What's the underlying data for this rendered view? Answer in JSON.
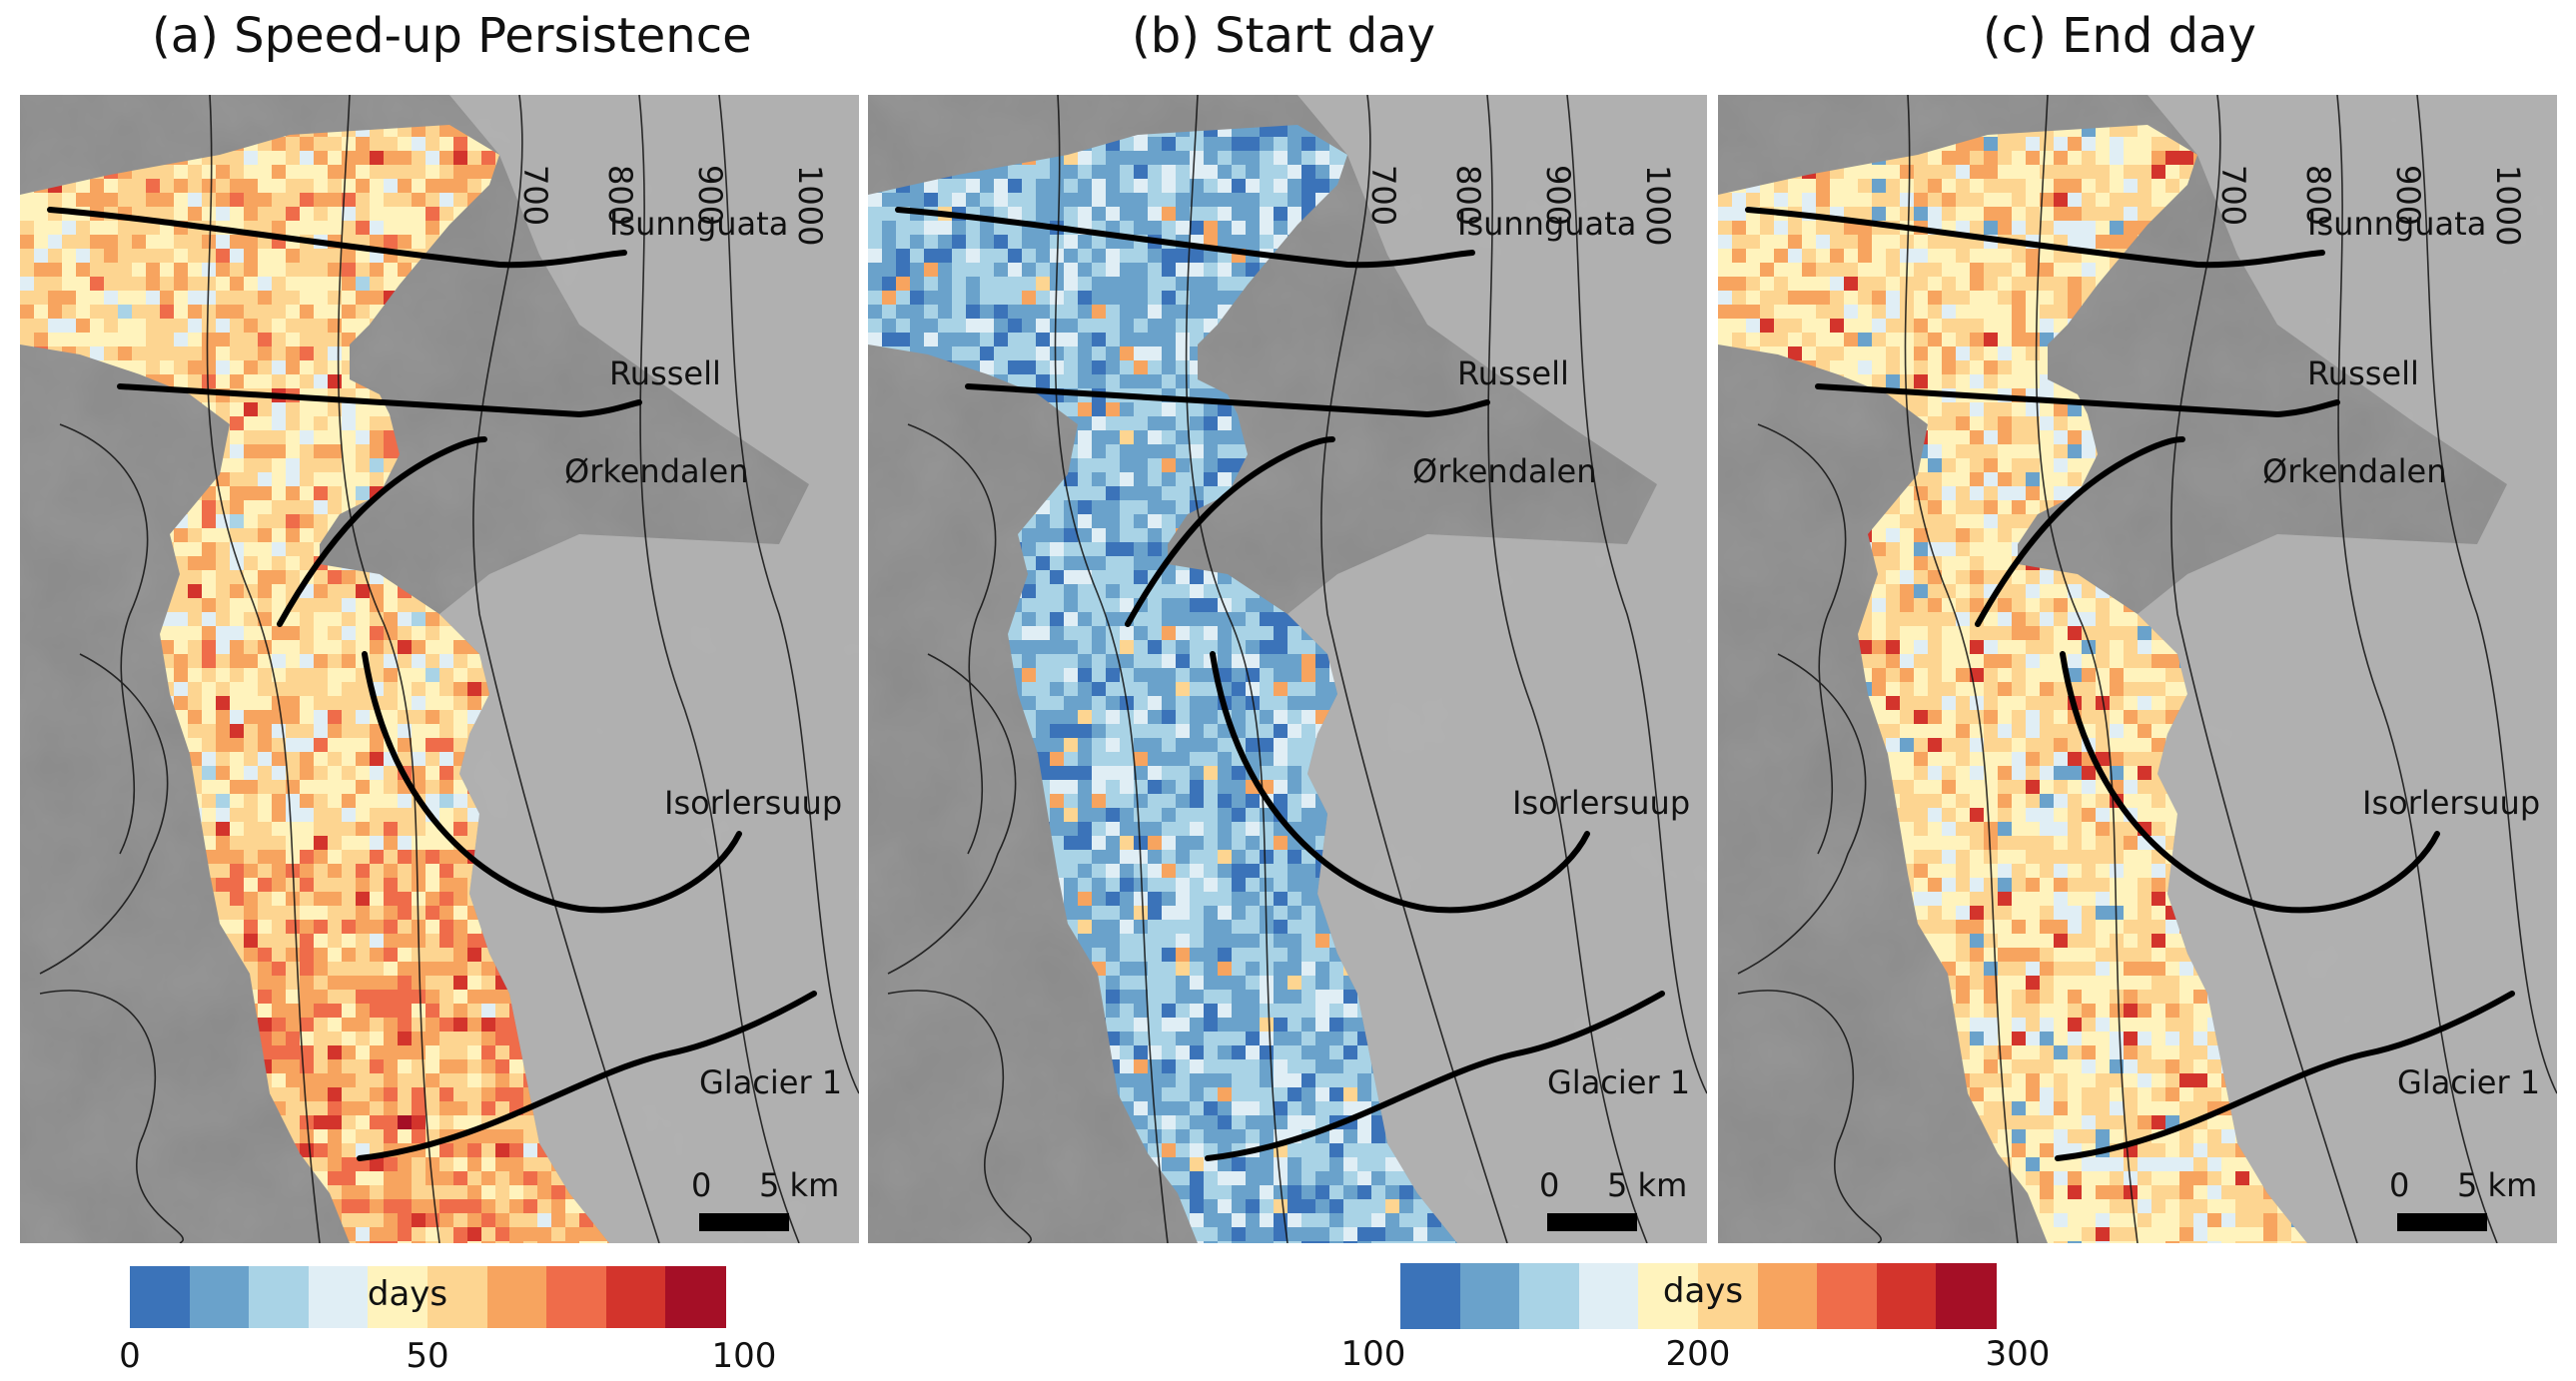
{
  "panels": [
    {
      "title": "(a) Speed-up Persistence",
      "scheme": "persistence"
    },
    {
      "title": "(b) Start day",
      "scheme": "start"
    },
    {
      "title": "(c) End day",
      "scheme": "end"
    }
  ],
  "contour_labels": [
    "700",
    "800",
    "900",
    "1000"
  ],
  "glacier_labels": [
    "Isunnguata",
    "Russell",
    "Ørkendalen",
    "Isorlersuup",
    "Glacier 1"
  ],
  "scalebar": {
    "zero": "0",
    "distance": "5 km"
  },
  "colorbars": [
    {
      "unit": "days",
      "ticks": [
        "0",
        "50",
        "100"
      ]
    },
    {
      "unit": "days",
      "ticks": [
        "100",
        "200",
        "300"
      ]
    }
  ],
  "palette": [
    "#3b73b9",
    "#6aa2cb",
    "#a9d3e6",
    "#e0eef5",
    "#fff3bd",
    "#fdd591",
    "#f7a45f",
    "#ef6c4a",
    "#d3342c",
    "#a50f26"
  ]
}
